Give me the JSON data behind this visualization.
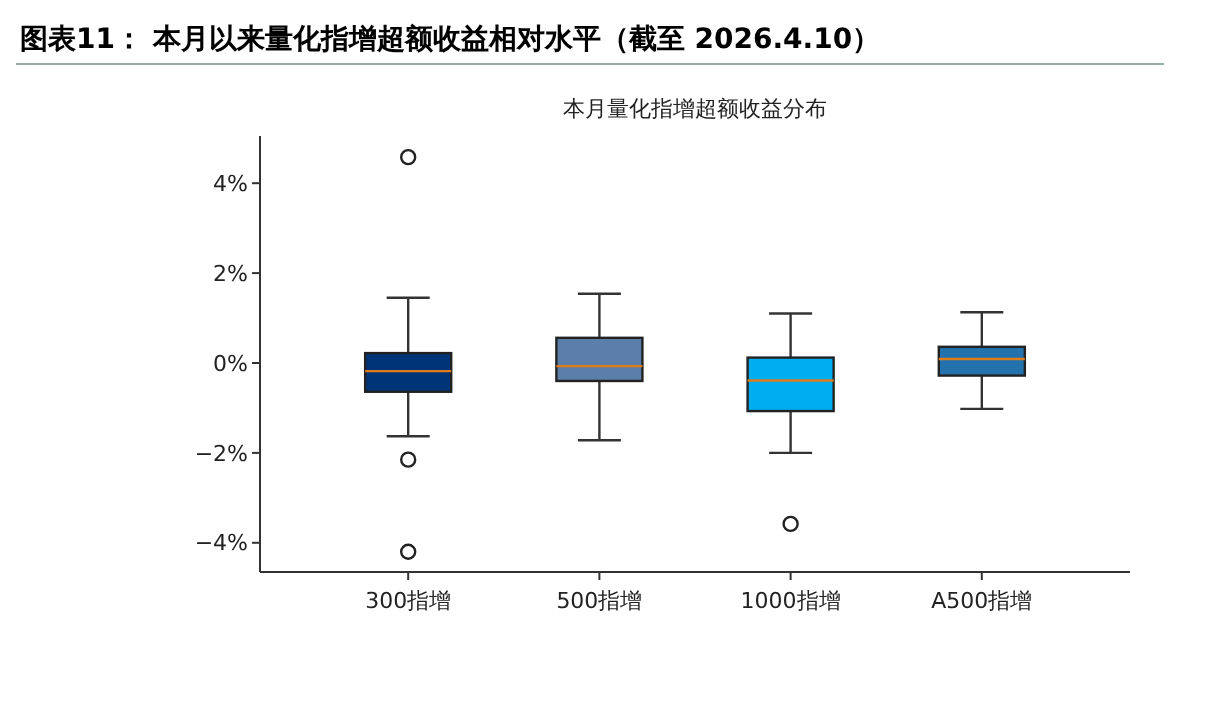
{
  "chart_data": {
    "type": "box",
    "title": "图表11： 本月以来量化指增超额收益相对水平（截至 2026.4.10）",
    "subtitle": "本月量化指增超额收益分布",
    "categories": [
      "300指增",
      "500指增",
      "1000指增",
      "A500指增"
    ],
    "colors": [
      "#003478",
      "#5b7fa8",
      "#00aeef",
      "#2372ae"
    ],
    "boxes": [
      {
        "low": -1.63,
        "q1": -0.64,
        "median": -0.18,
        "q3": 0.22,
        "high": 1.45,
        "outliers": [
          4.58,
          -2.15,
          -4.2
        ]
      },
      {
        "low": -1.72,
        "q1": -0.4,
        "median": -0.07,
        "q3": 0.56,
        "high": 1.54
      },
      {
        "low": -2.0,
        "q1": -1.07,
        "median": -0.39,
        "q3": 0.12,
        "high": 1.1,
        "outliers": [
          -3.58
        ]
      },
      {
        "low": -1.02,
        "q1": -0.28,
        "median": 0.09,
        "q3": 0.36,
        "high": 1.13
      }
    ],
    "ylim": [
      -4.65,
      5.05
    ],
    "yticks": [
      {
        "value": -4,
        "label": "−4%"
      },
      {
        "value": -2,
        "label": "−2%"
      },
      {
        "value": 0,
        "label": "0%"
      },
      {
        "value": 2,
        "label": "2%"
      },
      {
        "value": 4,
        "label": "4%"
      }
    ],
    "grid": false
  }
}
